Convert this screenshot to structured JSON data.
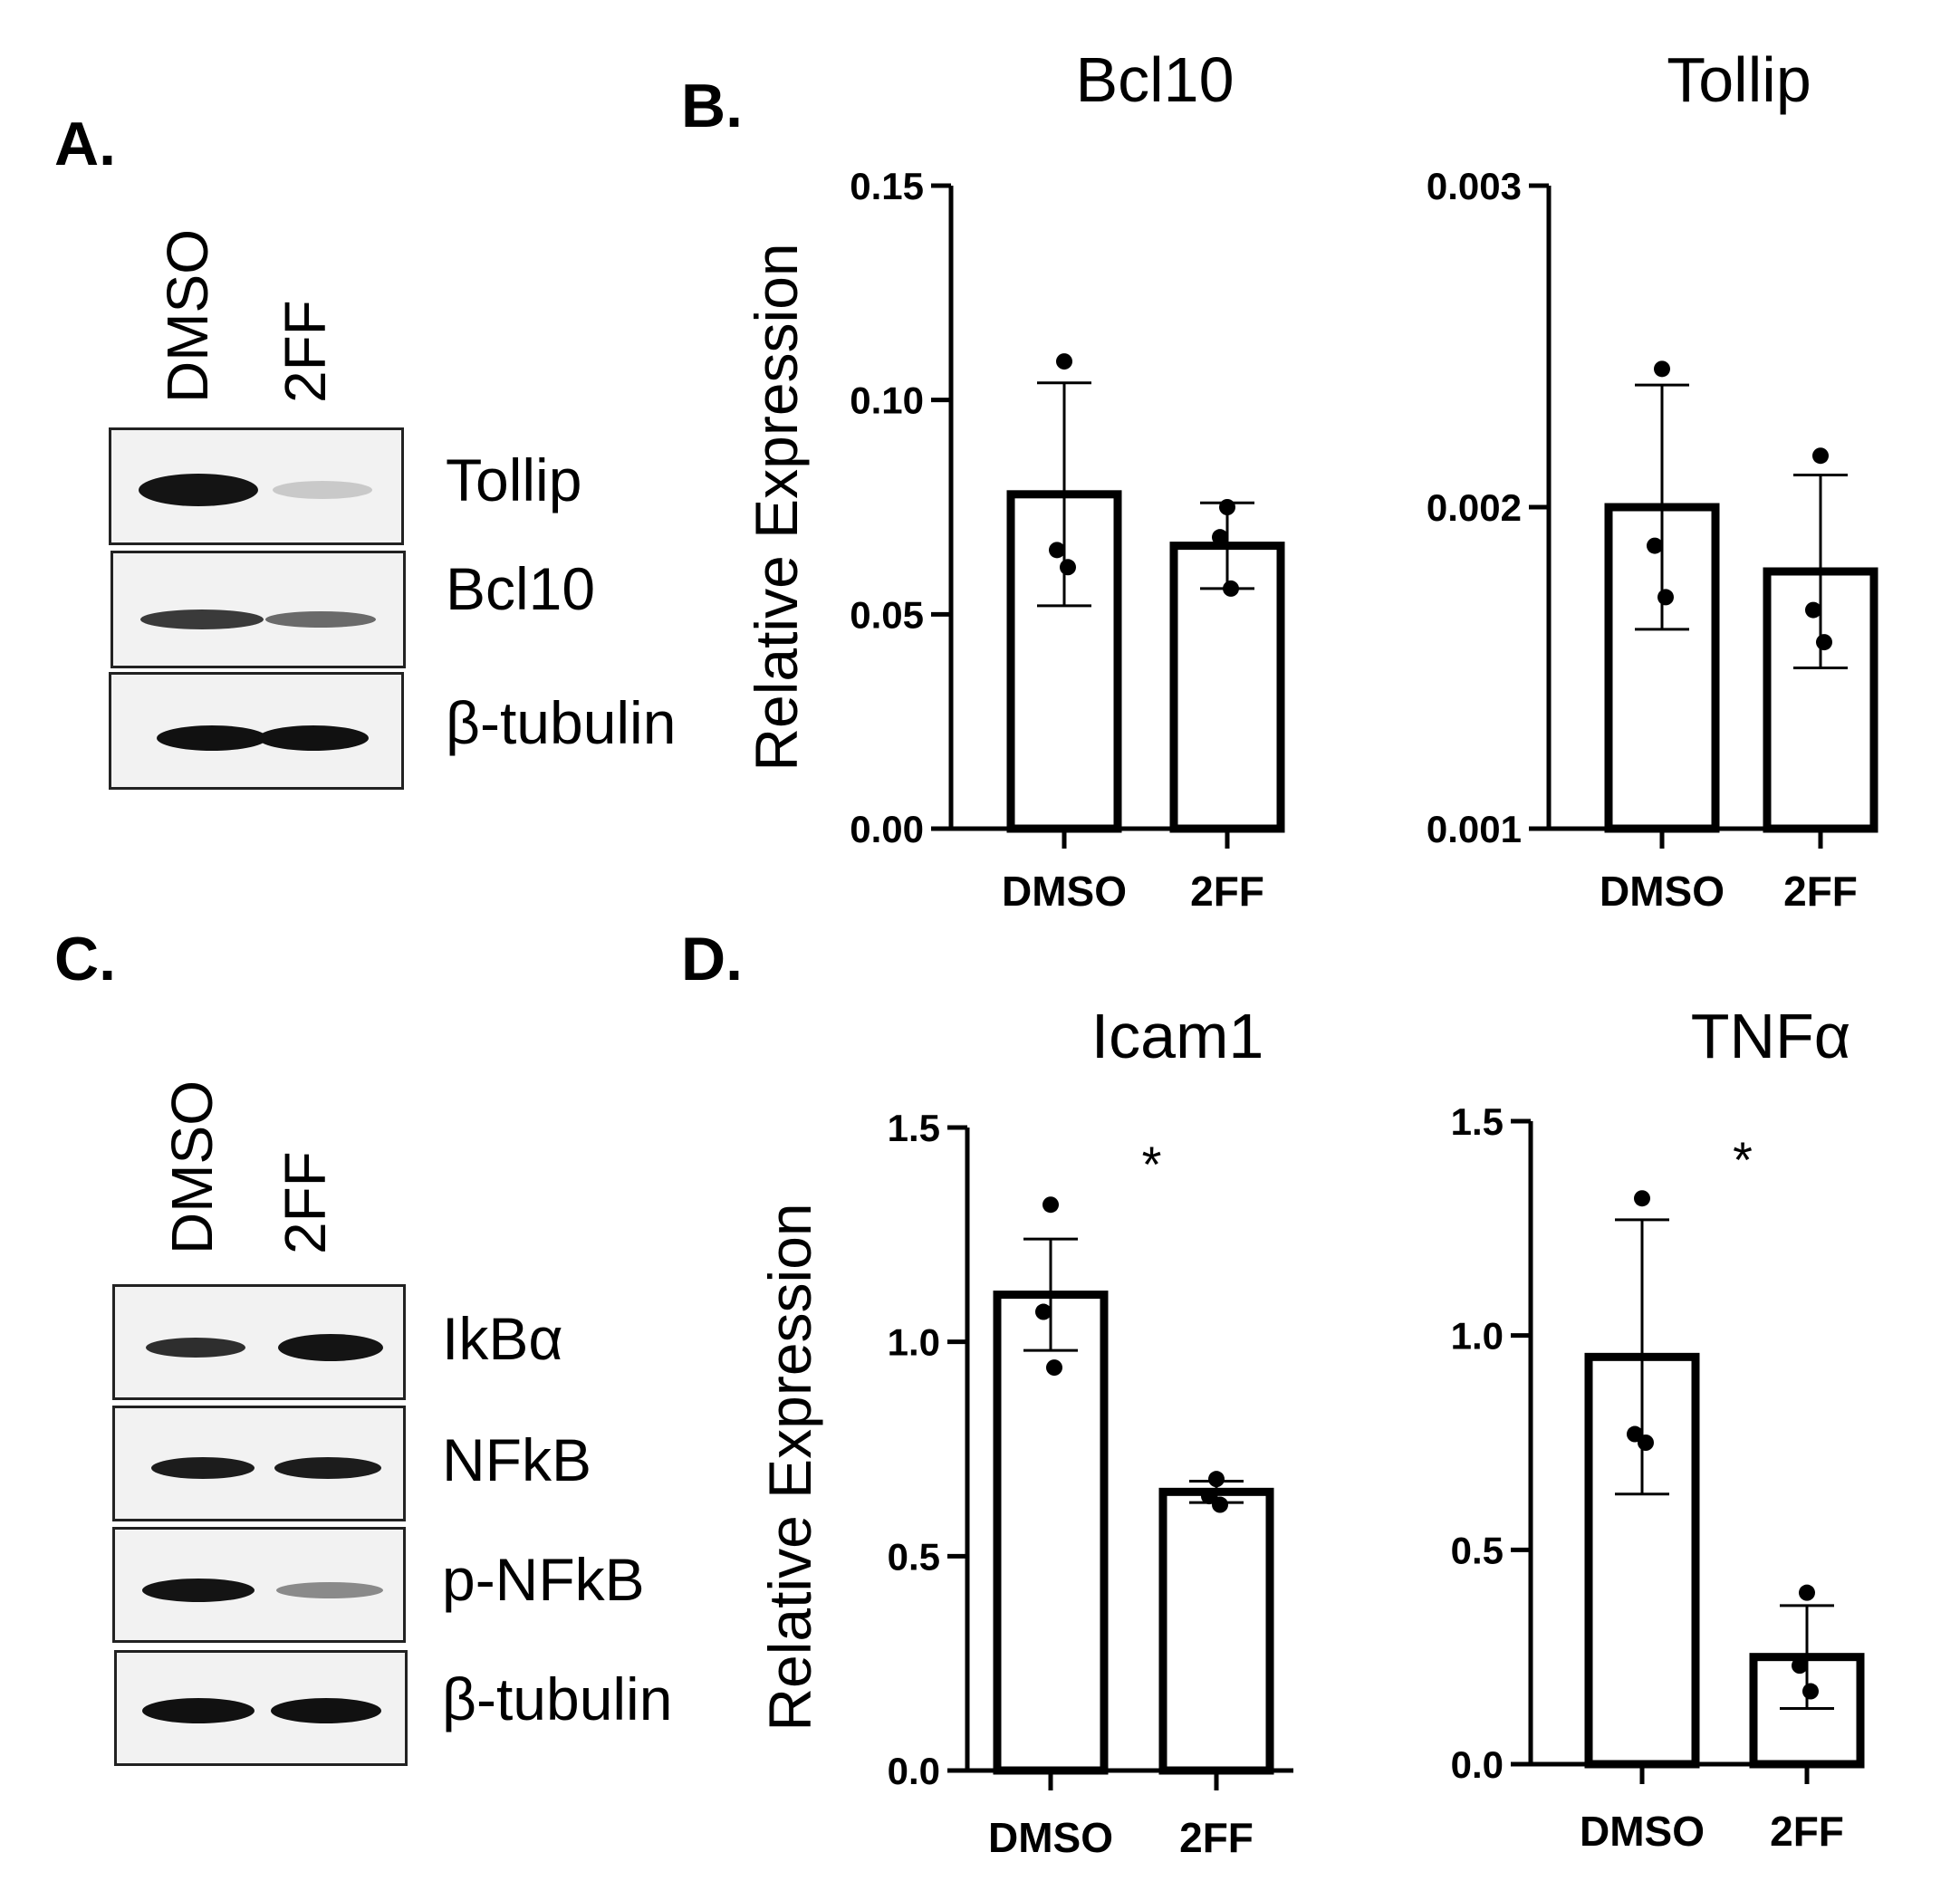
{
  "panels": {
    "a": "A.",
    "b": "B.",
    "c": "C.",
    "d": "D."
  },
  "blot_a": {
    "lanes": [
      "DMSO",
      "2FF"
    ],
    "rows": [
      {
        "label": "Tollip",
        "intensity": [
          0.95,
          0.15
        ]
      },
      {
        "label": "Bcl10",
        "intensity": [
          0.7,
          0.5
        ]
      },
      {
        "label": "β-tubulin",
        "intensity": [
          0.95,
          0.95
        ]
      }
    ]
  },
  "blot_c": {
    "lanes": [
      "DMSO",
      "2FF"
    ],
    "rows": [
      {
        "label": "IkBα",
        "intensity": [
          0.7,
          0.95
        ]
      },
      {
        "label": "NFkB",
        "intensity": [
          0.9,
          0.9
        ]
      },
      {
        "label": "p-NFkB",
        "intensity": [
          0.95,
          0.45
        ]
      },
      {
        "label": "β-tubulin",
        "intensity": [
          0.95,
          0.95
        ]
      }
    ]
  },
  "chart_data": [
    {
      "type": "bar",
      "title": "Bcl10",
      "ylabel": "Relative Expression",
      "categories": [
        "DMSO",
        "2FF"
      ],
      "values": [
        0.078,
        0.066
      ],
      "errors": [
        0.026,
        0.01
      ],
      "points": [
        [
          0.109,
          0.065,
          0.061
        ],
        [
          0.075,
          0.068,
          0.056
        ]
      ],
      "ylim": [
        0,
        0.15
      ],
      "yticks": [
        "0.00",
        "0.05",
        "0.10",
        "0.15"
      ],
      "ytick_values": [
        0,
        0.05,
        0.1,
        0.15
      ],
      "significance": ""
    },
    {
      "type": "bar",
      "title": "Tollip",
      "ylabel": "",
      "categories": [
        "DMSO",
        "2FF"
      ],
      "values": [
        0.002,
        0.0018
      ],
      "errors": [
        0.00038,
        0.0003
      ],
      "points": [
        [
          0.00243,
          0.00188,
          0.00172
        ],
        [
          0.00216,
          0.00168,
          0.00158
        ]
      ],
      "ylim": [
        0.001,
        0.003
      ],
      "yticks": [
        "0.001",
        "0.002",
        "0.003"
      ],
      "ytick_values": [
        0.001,
        0.002,
        0.003
      ],
      "significance": ""
    },
    {
      "type": "bar",
      "title": "Icam1",
      "ylabel": "Relative Expression",
      "categories": [
        "DMSO",
        "2FF"
      ],
      "values": [
        1.11,
        0.65
      ],
      "errors": [
        0.13,
        0.025
      ],
      "points": [
        [
          1.32,
          1.07,
          0.94
        ],
        [
          0.68,
          0.64,
          0.62
        ]
      ],
      "ylim": [
        0,
        1.5
      ],
      "yticks": [
        "0.0",
        "0.5",
        "1.0",
        "1.5"
      ],
      "ytick_values": [
        0,
        0.5,
        1,
        1.5
      ],
      "significance": "*"
    },
    {
      "type": "bar",
      "title": "TNFα",
      "ylabel": "",
      "categories": [
        "DMSO",
        "2FF"
      ],
      "values": [
        0.95,
        0.25
      ],
      "errors": [
        0.32,
        0.12
      ],
      "points": [
        [
          1.32,
          0.77,
          0.75
        ],
        [
          0.4,
          0.23,
          0.17
        ]
      ],
      "ylim": [
        0,
        1.5
      ],
      "yticks": [
        "0.0",
        "0.5",
        "1.0",
        "1.5"
      ],
      "ytick_values": [
        0,
        0.5,
        1,
        1.5
      ],
      "significance": "*"
    }
  ]
}
